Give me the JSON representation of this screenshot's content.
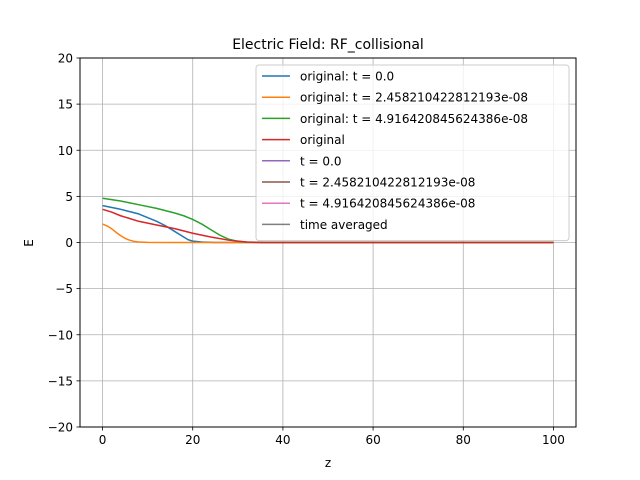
{
  "chart_data": {
    "type": "line",
    "title": "Electric Field: RF_collisional",
    "xlabel": "z",
    "ylabel": "E",
    "xlim": [
      -5,
      105
    ],
    "ylim": [
      -20,
      20
    ],
    "xticks": [
      0,
      20,
      40,
      60,
      80,
      100
    ],
    "xtick_labels": [
      "0",
      "20",
      "40",
      "60",
      "80",
      "100"
    ],
    "yticks": [
      -20,
      -15,
      -10,
      -5,
      0,
      5,
      10,
      15,
      20
    ],
    "ytick_labels": [
      "−20",
      "−15",
      "−10",
      "−5",
      "0",
      "5",
      "10",
      "15",
      "20"
    ],
    "grid": true,
    "legend_position": "top-right",
    "series": [
      {
        "name": "original: t = 0.0",
        "color": "#1f77b4",
        "x": [
          0,
          4,
          8,
          12,
          14,
          16,
          18,
          19,
          20,
          22,
          25,
          30,
          40,
          60,
          80,
          100
        ],
        "y": [
          4.0,
          3.6,
          3.1,
          2.3,
          1.8,
          1.2,
          0.6,
          0.3,
          0.15,
          0.05,
          0.0,
          0.0,
          0.0,
          0.0,
          0.0,
          0.0
        ]
      },
      {
        "name": "original: t = 2.458210422812193e-08",
        "color": "#ff7f0e",
        "x": [
          0,
          1,
          2,
          3,
          4,
          5,
          6,
          7,
          8,
          10,
          15,
          20,
          40,
          60,
          80,
          100
        ],
        "y": [
          2.0,
          1.8,
          1.5,
          1.1,
          0.75,
          0.45,
          0.25,
          0.12,
          0.06,
          0.02,
          0.0,
          0.0,
          0.0,
          0.0,
          0.0,
          0.0
        ]
      },
      {
        "name": "original: t = 4.916420845624386e-08",
        "color": "#2ca02c",
        "x": [
          0,
          4,
          8,
          12,
          16,
          18,
          20,
          22,
          24,
          26,
          28,
          30,
          32,
          35,
          40,
          60,
          80,
          100
        ],
        "y": [
          4.8,
          4.5,
          4.1,
          3.7,
          3.2,
          2.9,
          2.5,
          2.0,
          1.4,
          0.8,
          0.35,
          0.12,
          0.04,
          0.0,
          0.0,
          0.0,
          0.0,
          0.0
        ]
      },
      {
        "name": "original",
        "color": "#d62728",
        "x": [
          0,
          2,
          4,
          6,
          8,
          12,
          16,
          20,
          24,
          28,
          32,
          36,
          40,
          60,
          80,
          100
        ],
        "y": [
          3.6,
          3.3,
          2.9,
          2.6,
          2.3,
          1.9,
          1.5,
          1.0,
          0.6,
          0.25,
          0.05,
          0.0,
          0.0,
          0.0,
          0.0,
          0.0
        ]
      },
      {
        "name": "t = 0.0",
        "color": "#9467bd",
        "x": [],
        "y": []
      },
      {
        "name": "t = 2.458210422812193e-08",
        "color": "#8c564b",
        "x": [],
        "y": []
      },
      {
        "name": "t = 4.916420845624386e-08",
        "color": "#e377c2",
        "x": [],
        "y": []
      },
      {
        "name": "time averaged",
        "color": "#7f7f7f",
        "x": [],
        "y": []
      }
    ]
  }
}
